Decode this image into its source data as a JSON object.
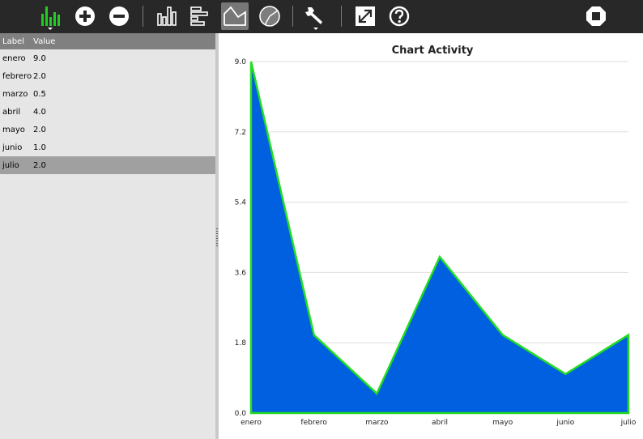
{
  "table": {
    "header": {
      "label": "Label",
      "value": "Value"
    },
    "rows": [
      {
        "label": "enero",
        "value": "9.0"
      },
      {
        "label": "febrero",
        "value": "2.0"
      },
      {
        "label": "marzo",
        "value": "0.5"
      },
      {
        "label": "abril",
        "value": "4.0"
      },
      {
        "label": "mayo",
        "value": "2.0"
      },
      {
        "label": "junio",
        "value": "1.0"
      },
      {
        "label": "julio",
        "value": "2.0"
      }
    ],
    "selected_index": 6
  },
  "toolbar": {
    "buttons": [
      {
        "name": "chart-type-menu",
        "icon": "bar-chart-icon",
        "color": "#22cc22"
      },
      {
        "name": "add",
        "icon": "plus-circle-icon"
      },
      {
        "name": "remove",
        "icon": "minus-circle-icon"
      },
      {
        "name": "vertical-bars",
        "icon": "vertical-bars-icon"
      },
      {
        "name": "horizontal-bars",
        "icon": "horizontal-bars-icon"
      },
      {
        "name": "area-chart",
        "icon": "area-chart-icon",
        "active": true
      },
      {
        "name": "pie-chart",
        "icon": "pie-chart-icon"
      },
      {
        "name": "settings",
        "icon": "wrench-icon"
      },
      {
        "name": "fullscreen",
        "icon": "expand-icon"
      },
      {
        "name": "help",
        "icon": "help-icon"
      },
      {
        "name": "stop",
        "icon": "stop-icon"
      }
    ]
  },
  "chart_data": {
    "type": "area",
    "title": "Chart Activity",
    "categories": [
      "enero",
      "febrero",
      "marzo",
      "abril",
      "mayo",
      "junio",
      "julio"
    ],
    "values": [
      9.0,
      2.0,
      0.5,
      4.0,
      2.0,
      1.0,
      2.0
    ],
    "y_ticks": [
      "0.0",
      "1.8",
      "3.6",
      "5.4",
      "7.2",
      "9.0"
    ],
    "ylim": [
      0,
      9.0
    ],
    "grid": true,
    "fill_color": "#0060e0",
    "line_color": "#22dd22"
  }
}
